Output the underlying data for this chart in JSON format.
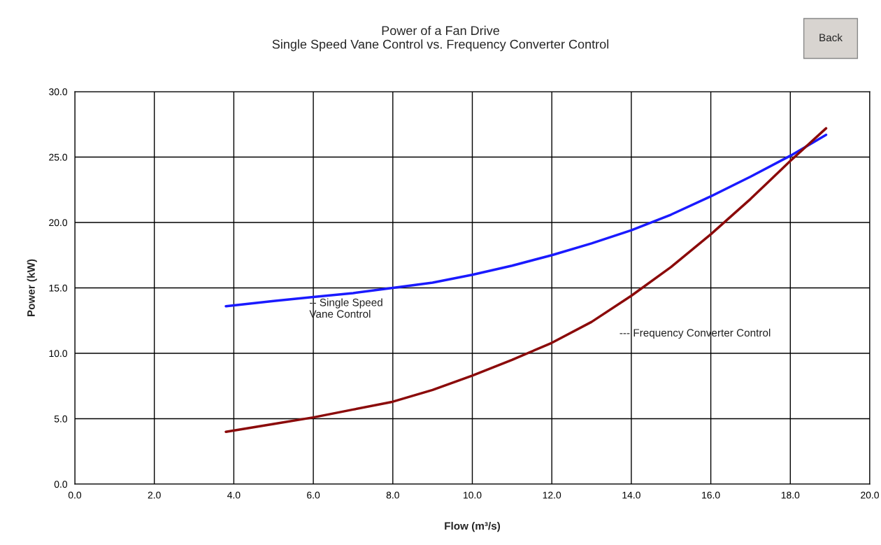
{
  "chart_data": {
    "type": "line",
    "title": "Power of a Fan Drive\nSingle Speed Vane Control vs. Frequency Converter Control",
    "xlabel": "Flow (m³/s)",
    "ylabel": "Power (kW)",
    "series": [
      {
        "name": "-- Single Speed\nVane Control",
        "color": "#1a1aff",
        "x": [
          3.8,
          5,
          6,
          7,
          8,
          9,
          10,
          11,
          12,
          13,
          14,
          15,
          16,
          17,
          18,
          18.9
        ],
        "values": [
          13.6,
          14.0,
          14.3,
          14.6,
          15.0,
          15.4,
          16.0,
          16.7,
          17.5,
          18.4,
          19.4,
          20.6,
          22.0,
          23.5,
          25.1,
          26.7
        ]
      },
      {
        "name": "--- Frequency Converter Control",
        "color": "#8b0a0a",
        "x": [
          3.8,
          5,
          6,
          7,
          8,
          9,
          10,
          11,
          12,
          13,
          14,
          15,
          16,
          17,
          18,
          18.9
        ],
        "values": [
          4.0,
          4.6,
          5.1,
          5.7,
          6.3,
          7.2,
          8.3,
          9.5,
          10.8,
          12.4,
          14.4,
          16.6,
          19.1,
          21.8,
          24.7,
          27.2
        ]
      }
    ],
    "xlim": [
      0,
      20
    ],
    "ylim": [
      0,
      30
    ],
    "xticks": [
      {
        "value": 0,
        "label": "0.0"
      },
      {
        "value": 2,
        "label": "2.0"
      },
      {
        "value": 4,
        "label": "4.0"
      },
      {
        "value": 6,
        "label": "6.0"
      },
      {
        "value": 8,
        "label": "8.0"
      },
      {
        "value": 10,
        "label": "10.0"
      },
      {
        "value": 12,
        "label": "12.0"
      },
      {
        "value": 14,
        "label": "14.0"
      },
      {
        "value": 16,
        "label": "16.0"
      },
      {
        "value": 18,
        "label": "18.0"
      },
      {
        "value": 20,
        "label": "20.0"
      }
    ],
    "yticks": [
      {
        "value": 0,
        "label": "0.0"
      },
      {
        "value": 5,
        "label": "5.0"
      },
      {
        "value": 10,
        "label": "10.0"
      },
      {
        "value": 15,
        "label": "15.0"
      },
      {
        "value": 20,
        "label": "20.0"
      },
      {
        "value": 25,
        "label": "25.0"
      },
      {
        "value": 30,
        "label": "30.0"
      }
    ],
    "grid": true,
    "legend": false,
    "marker": "none",
    "line_style": "solid",
    "annotations": [
      "Back"
    ]
  }
}
